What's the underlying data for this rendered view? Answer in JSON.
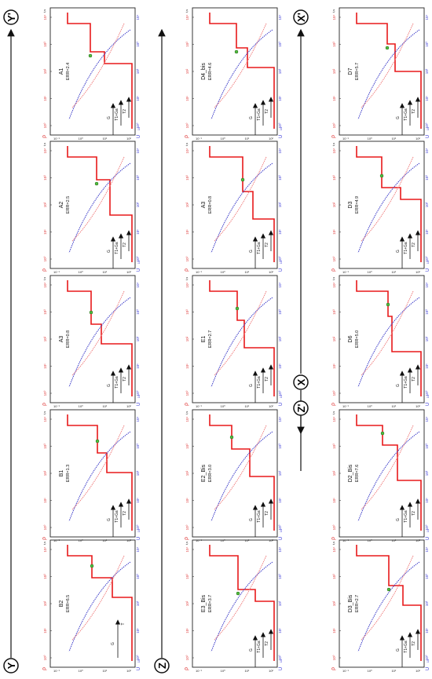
{
  "profile_markers": [
    {
      "letter": "Y",
      "prime": false
    },
    {
      "letter": "Y",
      "prime": true
    },
    {
      "letter": "Z",
      "prime": false
    },
    {
      "letter": "Z",
      "prime": true
    },
    {
      "letter": "X",
      "prime": false
    },
    {
      "letter": "X",
      "prime": true
    }
  ],
  "axis": {
    "left_title": "ρ",
    "right_title": "U",
    "right_unit": "10",
    "bottom_unit": "t,s",
    "tick_labels": [
      "10⁰",
      "10¹",
      "10²",
      "10³",
      "10⁴"
    ],
    "x_tick_labels": [
      "10⁻¹",
      "10⁰",
      "10¹",
      "10²"
    ]
  },
  "layer_labels": {
    "g": "G",
    "t1ga": "T1+Ga",
    "t2": "T2",
    "t": "T"
  },
  "panels": [
    {
      "row": 0,
      "col": 0,
      "name": "B2",
      "err": "ERR=6.5",
      "layers": "t"
    },
    {
      "row": 0,
      "col": 1,
      "name": "B1",
      "err": "ERR=1.3",
      "layers": "full"
    },
    {
      "row": 0,
      "col": 2,
      "name": "A3",
      "err": "ERR=0.8",
      "layers": "full"
    },
    {
      "row": 0,
      "col": 3,
      "name": "A2",
      "err": "ERR=2.5",
      "layers": "full"
    },
    {
      "row": 0,
      "col": 4,
      "name": "A1",
      "err": "ERR=2.4",
      "layers": "full"
    },
    {
      "row": 1,
      "col": 0,
      "name": "E3_Bis",
      "err": "ERR=3.7",
      "layers": "full"
    },
    {
      "row": 1,
      "col": 1,
      "name": "E2_Bis",
      "err": "ERR=3.0",
      "layers": "full"
    },
    {
      "row": 1,
      "col": 2,
      "name": "E1",
      "err": "ERR=2.7",
      "layers": "full"
    },
    {
      "row": 1,
      "col": 3,
      "name": "A3",
      "err": "ERR=0.8",
      "layers": "full"
    },
    {
      "row": 1,
      "col": 4,
      "name": "D4_bis",
      "err": "ERR=4.6",
      "layers": "full"
    },
    {
      "row": 2,
      "col": 0,
      "name": "D3_Bis",
      "err": "ERR=2.7",
      "layers": "full"
    },
    {
      "row": 2,
      "col": 1,
      "name": "D2_Bis",
      "err": "ERR=7.6",
      "layers": "full"
    },
    {
      "row": 2,
      "col": 2,
      "name": "D6",
      "err": "ERR=5.0",
      "layers": "full"
    },
    {
      "row": 2,
      "col": 3,
      "name": "D3",
      "err": "ERR=4.9",
      "layers": "full"
    },
    {
      "row": 2,
      "col": 4,
      "name": "D7",
      "err": "ERR=5.7",
      "layers": "full"
    }
  ],
  "colors": {
    "model": "#e8191a",
    "apparent_resistivity": "#f08080",
    "voltage": "#3a3ac8",
    "frame": "#222222",
    "axis_blue": "#3a3ad8",
    "axis_red": "#e04040",
    "point": "#50c040"
  }
}
